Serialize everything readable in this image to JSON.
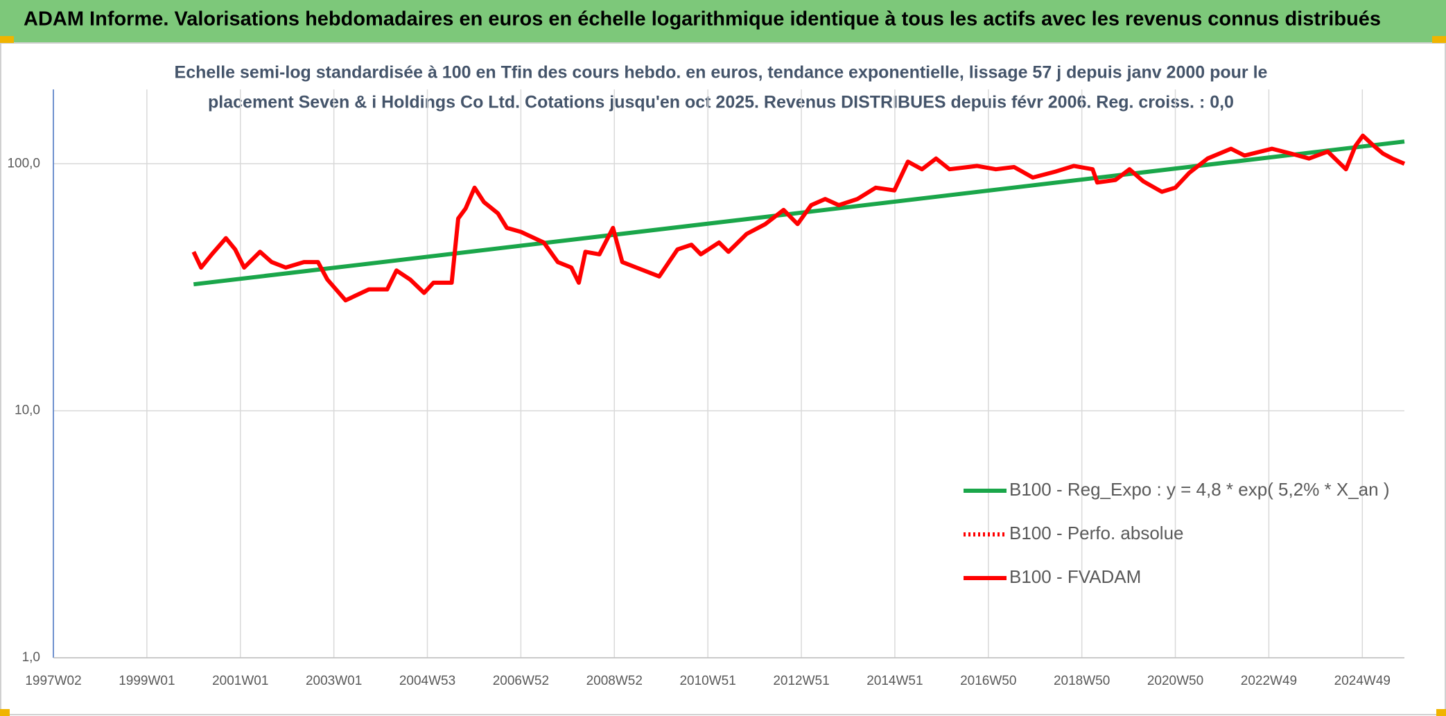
{
  "header": {
    "title": "ADAM Informe. Valorisations hebdomadaires en euros en échelle logarithmique identique à tous les actifs avec les revenus connus distribués"
  },
  "chart_data": {
    "type": "line",
    "subtitle": [
      "Echelle semi-log standardisée à 100 en Tfin des cours hebdo. en euros, tendance exponentielle, lissage 57 j depuis janv 2000 pour le",
      "placement Seven & i Holdings Co Ltd. Cotations jusqu'en oct 2025. Revenus DISTRIBUES depuis févr 2006. Reg. croiss. : 0,0"
    ],
    "log_scale": true,
    "grid": true,
    "legend": "lower right",
    "xlim": [
      1997.0,
      2025.9
    ],
    "xticks": [
      {
        "value": 1997,
        "label": "1997W02"
      },
      {
        "value": 1999,
        "label": "1999W01"
      },
      {
        "value": 2001,
        "label": "2001W01"
      },
      {
        "value": 2003,
        "label": "2003W01"
      },
      {
        "value": 2005,
        "label": "2004W53"
      },
      {
        "value": 2007,
        "label": "2006W52"
      },
      {
        "value": 2009,
        "label": "2008W52"
      },
      {
        "value": 2011,
        "label": "2010W51"
      },
      {
        "value": 2013,
        "label": "2012W51"
      },
      {
        "value": 2015,
        "label": "2014W51"
      },
      {
        "value": 2017,
        "label": "2016W50"
      },
      {
        "value": 2019,
        "label": "2018W50"
      },
      {
        "value": 2021,
        "label": "2020W50"
      },
      {
        "value": 2023,
        "label": "2022W49"
      },
      {
        "value": 2025,
        "label": "2024W49"
      }
    ],
    "ylim": [
      1,
      200
    ],
    "yticks": [
      {
        "value": 1,
        "label": "1,0"
      },
      {
        "value": 10,
        "label": "10,0"
      },
      {
        "value": 100,
        "label": "100,0"
      }
    ],
    "series": [
      {
        "name": "B100 - Reg_Expo : y = 4,8 * exp( 5,2% *  X_an )",
        "color": "#1aa64a",
        "dash": "solid",
        "x": [
          2000.0,
          2025.9
        ],
        "values": [
          32.5,
          123
        ]
      },
      {
        "name": "B100 - Perfo. absolue",
        "color": "#ff0000",
        "dash": "dotted",
        "x": [],
        "values": []
      },
      {
        "name": "B100 - FVADAM",
        "color": "#ff0000",
        "dash": "solid",
        "x": [
          2000.0,
          2000.16,
          2000.39,
          2000.69,
          2000.89,
          2001.08,
          2001.42,
          2001.67,
          2001.97,
          2002.36,
          2002.66,
          2002.86,
          2003.25,
          2003.75,
          2004.14,
          2004.34,
          2004.63,
          2004.93,
          2005.13,
          2005.52,
          2005.66,
          2005.82,
          2006.01,
          2006.21,
          2006.51,
          2006.7,
          2007.0,
          2007.49,
          2007.79,
          2008.08,
          2008.24,
          2008.38,
          2008.68,
          2008.97,
          2009.17,
          2009.47,
          2009.96,
          2010.35,
          2010.65,
          2010.85,
          2011.24,
          2011.44,
          2011.83,
          2012.23,
          2012.62,
          2012.92,
          2013.21,
          2013.51,
          2013.8,
          2014.2,
          2014.59,
          2014.99,
          2015.28,
          2015.58,
          2015.88,
          2016.17,
          2016.76,
          2017.16,
          2017.55,
          2017.95,
          2018.44,
          2018.83,
          2019.23,
          2019.33,
          2019.72,
          2020.02,
          2020.31,
          2020.71,
          2021.0,
          2021.3,
          2021.69,
          2022.19,
          2022.48,
          2023.07,
          2023.47,
          2023.86,
          2024.26,
          2024.65,
          2024.85,
          2025.01,
          2025.25,
          2025.44,
          2025.64,
          2025.9
        ],
        "values": [
          44,
          38,
          43,
          50,
          45,
          38,
          44,
          40,
          38,
          40,
          40,
          34,
          28,
          31,
          31,
          37,
          34,
          30,
          33,
          33,
          60,
          66,
          80,
          70,
          63,
          55,
          53,
          48,
          40,
          38,
          33,
          44,
          43,
          55,
          40,
          38,
          35,
          45,
          47,
          43,
          48,
          44,
          52,
          57,
          65,
          57,
          68,
          72,
          68,
          72,
          80,
          78,
          102,
          95,
          105,
          95,
          98,
          95,
          97,
          88,
          93,
          98,
          95,
          84,
          86,
          95,
          85,
          77,
          80,
          92,
          105,
          115,
          108,
          115,
          110,
          105,
          112,
          95,
          118,
          130,
          118,
          110,
          105,
          100
        ]
      }
    ]
  }
}
